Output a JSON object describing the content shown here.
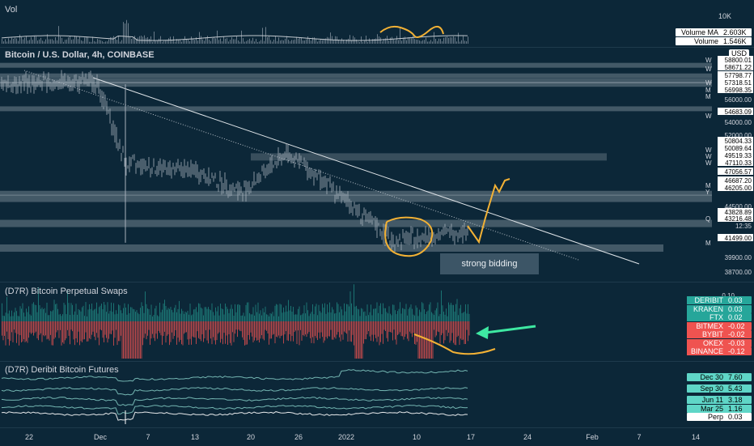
{
  "vol_pane": {
    "title": "Vol",
    "axis_label": "10K",
    "ma_name": "Volume MA",
    "ma_value": "2.603K",
    "vol_name": "Volume",
    "vol_value": "1.546K"
  },
  "main_pane": {
    "title": "Bitcoin / U.S. Dollar, 4h, COINBASE",
    "currency": "USD",
    "price_labels": [
      "58800.01",
      "58671.22",
      "57798.77",
      "57318.51",
      "56998.35",
      "56000.00",
      "54683.09",
      "54000.00",
      "52000.00",
      "50804.33",
      "50089.64",
      "49519.33",
      "47110.33",
      "47056.57",
      "46687.20",
      "46205.00",
      "44500.00",
      "43828.89",
      "43216.48",
      "12:35",
      "41499.00",
      "39900.00",
      "38700.00"
    ],
    "level_tags": [
      "W",
      "W",
      "W",
      "M",
      "M",
      "W",
      "W",
      "W",
      "W",
      "M",
      "Y",
      "Q",
      "M"
    ],
    "annotation_text": "strong bidding"
  },
  "perp_pane": {
    "title": "(D7R) Bitcoin Perpetual Swaps",
    "axis_top": "0.10",
    "exchanges": [
      {
        "name": "DERIBIT",
        "value": "0.03",
        "color": "#26a69a"
      },
      {
        "name": "KRAKEN",
        "value": "0.03",
        "color": "#26a69a"
      },
      {
        "name": "FTX",
        "value": "0.02",
        "color": "#26a69a"
      },
      {
        "name": "BITMEX",
        "value": "-0.02",
        "color": "#ef5350"
      },
      {
        "name": "BYBIT",
        "value": "-0.02",
        "color": "#ef5350"
      },
      {
        "name": "OKEX",
        "value": "-0.03",
        "color": "#ef5350"
      },
      {
        "name": "BINANCE",
        "value": "-0.12",
        "color": "#ef5350"
      }
    ]
  },
  "fut_pane": {
    "title": "(D7R) Deribit Bitcoin Futures",
    "contracts": [
      {
        "name": "Dec 30",
        "value": "7.60"
      },
      {
        "name": "Sep 30",
        "value": "5.43"
      },
      {
        "name": "Jun 11",
        "value": "3.18"
      },
      {
        "name": "Mar 25",
        "value": "1.16"
      },
      {
        "name": "Perp",
        "value": "0.03"
      }
    ]
  },
  "time_axis": [
    "22",
    "Dec",
    "7",
    "13",
    "20",
    "26",
    "2022",
    "10",
    "17",
    "24",
    "Feb",
    "7",
    "14"
  ],
  "chart_data": {
    "type": "line",
    "title": "Bitcoin / U.S. Dollar, 4h, COINBASE",
    "x": [
      "Nov 22",
      "Dec",
      "Dec 7",
      "Dec 13",
      "Dec 20",
      "Dec 26",
      "2022",
      "Jan 10",
      "Jan 17"
    ],
    "series": [
      {
        "values": [
          57000,
          57200,
          49500,
          48800,
          46800,
          50600,
          46500,
          42200,
          43200
        ]
      }
    ],
    "ylim": [
      38700,
      60000
    ],
    "horizontal_levels": [
      58800.01,
      57798.77,
      57318.51,
      56998.35,
      54683.09,
      50089.64,
      46687.2,
      46205.0,
      43828.89,
      41499.0
    ]
  },
  "colors": {
    "background": "#0c2738",
    "price_line": "#a7b1bc",
    "level_band": "#d5dbe1",
    "perp_positive": "#26a69a",
    "perp_negative": "#ef5350",
    "annotation": "#f2b135",
    "arrow": "#3ee8a2",
    "futures_line": "#7fc7c0"
  }
}
